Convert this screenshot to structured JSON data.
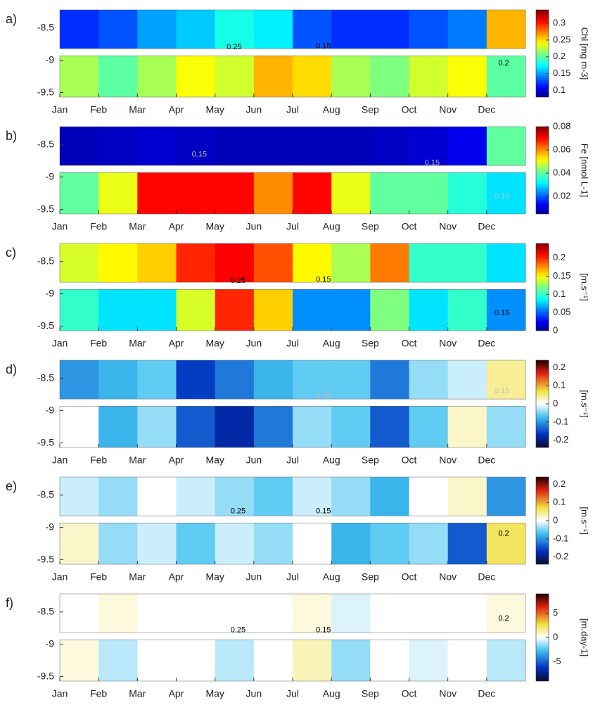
{
  "chart_data": [
    {
      "type": "heatmap",
      "label": "a)",
      "colorbar_label": "Chl [mg m-3]",
      "colormap": "jet",
      "contour_color": "#000000",
      "categories": [
        "Jan",
        "Feb",
        "Mar",
        "Apr",
        "May",
        "Jun",
        "Jul",
        "Aug",
        "Sep",
        "Oct",
        "Nov",
        "Dec"
      ],
      "ylim": [
        -9.57,
        -8.22
      ],
      "yticks": [
        -8.5,
        -9,
        -9.5
      ],
      "zlim": [
        0.08,
        0.34
      ],
      "zticks": [
        0.1,
        0.15,
        0.2,
        0.25,
        0.3
      ],
      "strips": [
        {
          "ylim": [
            -8.82,
            -8.22
          ],
          "values": [
            0.12,
            0.13,
            0.15,
            0.16,
            0.18,
            0.17,
            0.13,
            0.12,
            0.12,
            0.13,
            0.14,
            0.26
          ]
        },
        {
          "ylim": [
            -9.57,
            -8.93
          ],
          "values": [
            0.22,
            0.2,
            0.22,
            0.24,
            0.23,
            0.26,
            0.25,
            0.22,
            0.21,
            0.23,
            0.24,
            0.2
          ]
        }
      ],
      "annotations": [
        {
          "text": "0.25",
          "x": 4.3,
          "y": -8.8
        },
        {
          "text": "0.15",
          "x": 6.6,
          "y": -8.78
        },
        {
          "text": "0.2",
          "x": 11.3,
          "y": -9.05
        }
      ]
    },
    {
      "type": "heatmap",
      "label": "b)",
      "colorbar_label": "Fe [nmol L-1]",
      "colormap": "jet",
      "contour_color": "#bbbbbb",
      "categories": [
        "Jan",
        "Feb",
        "Mar",
        "Apr",
        "May",
        "Jun",
        "Jul",
        "Aug",
        "Sep",
        "Oct",
        "Nov",
        "Dec"
      ],
      "ylim": [
        -9.57,
        -8.22
      ],
      "yticks": [
        -8.5,
        -9,
        -9.5
      ],
      "zlim": [
        0.005,
        0.08
      ],
      "zticks": [
        0.02,
        0.04,
        0.06,
        0.08
      ],
      "strips": [
        {
          "ylim": [
            -8.82,
            -8.22
          ],
          "values": [
            0.008,
            0.009,
            0.01,
            0.009,
            0.008,
            0.008,
            0.008,
            0.008,
            0.009,
            0.01,
            0.012,
            0.04
          ]
        },
        {
          "ylim": [
            -9.57,
            -8.93
          ],
          "values": [
            0.04,
            0.05,
            0.07,
            0.07,
            0.07,
            0.06,
            0.07,
            0.05,
            0.04,
            0.04,
            0.035,
            0.03
          ]
        }
      ],
      "annotations": [
        {
          "text": "0.15",
          "x": 3.4,
          "y": -8.65
        },
        {
          "text": "0.15",
          "x": 9.4,
          "y": -8.78
        },
        {
          "text": "0.15",
          "x": 11.2,
          "y": -9.3
        }
      ]
    },
    {
      "type": "heatmap",
      "label": "c)",
      "colorbar_label": "[m.s⁻¹]",
      "colormap": "jet",
      "contour_color": "#000000",
      "categories": [
        "Jan",
        "Feb",
        "Mar",
        "Apr",
        "May",
        "Jun",
        "Jul",
        "Aug",
        "Sep",
        "Oct",
        "Nov",
        "Dec"
      ],
      "ylim": [
        -9.57,
        -8.22
      ],
      "yticks": [
        -8.5,
        -9,
        -9.5
      ],
      "zlim": [
        0,
        0.24
      ],
      "zticks": [
        0,
        0.05,
        0.1,
        0.15,
        0.2
      ],
      "strips": [
        {
          "ylim": [
            -8.82,
            -8.22
          ],
          "values": [
            0.14,
            0.15,
            0.16,
            0.2,
            0.21,
            0.19,
            0.15,
            0.13,
            0.18,
            0.1,
            0.1,
            0.08
          ]
        },
        {
          "ylim": [
            -9.57,
            -8.93
          ],
          "values": [
            0.1,
            0.08,
            0.08,
            0.14,
            0.2,
            0.16,
            0.06,
            0.06,
            0.12,
            0.08,
            0.1,
            0.06
          ]
        }
      ],
      "annotations": [
        {
          "text": "0.25",
          "x": 4.4,
          "y": -8.8
        },
        {
          "text": "0.15",
          "x": 6.6,
          "y": -8.78
        },
        {
          "text": "0.15",
          "x": 11.2,
          "y": -9.3
        }
      ]
    },
    {
      "type": "heatmap",
      "label": "d)",
      "colorbar_label": "[m.s⁻¹]",
      "colormap": "diverging",
      "contour_color": "#bbbbbb",
      "categories": [
        "Jan",
        "Feb",
        "Mar",
        "Apr",
        "May",
        "Jun",
        "Jul",
        "Aug",
        "Sep",
        "Oct",
        "Nov",
        "Dec"
      ],
      "ylim": [
        -9.57,
        -8.22
      ],
      "yticks": [
        -8.5,
        -9,
        -9.5
      ],
      "zlim": [
        -0.24,
        0.24
      ],
      "zticks": [
        0.2,
        0.1,
        0,
        -0.1,
        -0.2
      ],
      "strips": [
        {
          "ylim": [
            -8.82,
            -8.22
          ],
          "values": [
            -0.1,
            -0.08,
            -0.06,
            -0.16,
            -0.12,
            -0.08,
            -0.06,
            -0.06,
            -0.12,
            -0.04,
            -0.02,
            0.04
          ]
        },
        {
          "ylim": [
            -9.57,
            -8.93
          ],
          "values": [
            0,
            -0.08,
            -0.04,
            -0.14,
            -0.18,
            -0.12,
            -0.04,
            -0.06,
            -0.14,
            -0.06,
            0.02,
            -0.04
          ]
        }
      ],
      "annotations": [
        {
          "text": "0.15",
          "x": 6.6,
          "y": -8.78
        },
        {
          "text": "0.15",
          "x": 11.2,
          "y": -8.7
        }
      ]
    },
    {
      "type": "heatmap",
      "label": "e)",
      "colorbar_label": "[m.s⁻¹]",
      "colormap": "diverging",
      "contour_color": "#000000",
      "categories": [
        "Jan",
        "Feb",
        "Mar",
        "Apr",
        "May",
        "Jun",
        "Jul",
        "Aug",
        "Sep",
        "Oct",
        "Nov",
        "Dec"
      ],
      "ylim": [
        -9.57,
        -8.22
      ],
      "yticks": [
        -8.5,
        -9,
        -9.5
      ],
      "zlim": [
        -0.24,
        0.24
      ],
      "zticks": [
        0.2,
        0.1,
        0,
        -0.1,
        -0.2
      ],
      "strips": [
        {
          "ylim": [
            -8.82,
            -8.22
          ],
          "values": [
            -0.02,
            -0.04,
            0,
            -0.02,
            -0.04,
            -0.06,
            -0.02,
            -0.04,
            -0.08,
            0,
            0.02,
            -0.1
          ]
        },
        {
          "ylim": [
            -9.57,
            -8.93
          ],
          "values": [
            0.02,
            -0.04,
            -0.02,
            -0.06,
            -0.02,
            -0.04,
            0,
            -0.08,
            -0.06,
            -0.04,
            -0.14,
            0.06
          ]
        }
      ],
      "annotations": [
        {
          "text": "0.25",
          "x": 4.4,
          "y": -8.75
        },
        {
          "text": "0.15",
          "x": 6.6,
          "y": -8.75
        },
        {
          "text": "0.2",
          "x": 11.3,
          "y": -9.1
        }
      ]
    },
    {
      "type": "heatmap",
      "label": "f)",
      "colorbar_label": "[m.day-1]",
      "colormap": "diverging",
      "contour_color": "#000000",
      "categories": [
        "Jan",
        "Feb",
        "Mar",
        "Apr",
        "May",
        "Jun",
        "Jul",
        "Aug",
        "Sep",
        "Oct",
        "Nov",
        "Dec"
      ],
      "ylim": [
        -9.57,
        -8.22
      ],
      "yticks": [
        -8.5,
        -9,
        -9.5
      ],
      "zlim": [
        -9,
        9
      ],
      "zticks": [
        5,
        0,
        -5
      ],
      "strips": [
        {
          "ylim": [
            -8.82,
            -8.22
          ],
          "values": [
            0,
            0.5,
            0,
            0,
            0,
            0,
            0.5,
            -0.5,
            0,
            0,
            0,
            0.5
          ]
        },
        {
          "ylim": [
            -9.57,
            -8.93
          ],
          "values": [
            0.5,
            -1,
            0,
            0,
            -1,
            0,
            1,
            -1.5,
            0,
            -0.5,
            0,
            -1
          ]
        }
      ],
      "annotations": [
        {
          "text": "0.25",
          "x": 4.4,
          "y": -8.78
        },
        {
          "text": "0.15",
          "x": 6.6,
          "y": -8.78
        },
        {
          "text": "0.2",
          "x": 11.3,
          "y": -8.6
        }
      ]
    }
  ]
}
